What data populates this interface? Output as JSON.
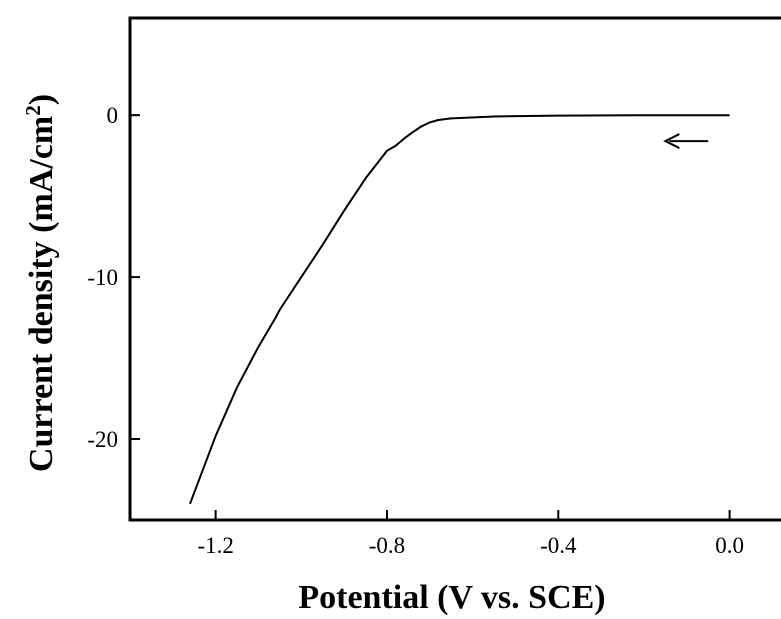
{
  "chart_data": {
    "type": "line",
    "title": "",
    "xlabel": "Potential (V vs. SCE)",
    "ylabel_main": "Current density (mA/cm",
    "ylabel_sup": "2",
    "ylabel_close": ")",
    "xlim": [
      -1.4,
      0.12
    ],
    "ylim": [
      -25,
      6
    ],
    "xticks": [
      -1.2,
      -0.8,
      -0.4,
      0.0
    ],
    "xtick_labels": [
      "-1.2",
      "-0.8",
      "-0.4",
      "0.0"
    ],
    "yticks": [
      0,
      -10,
      -20
    ],
    "ytick_labels": [
      "0",
      "-10",
      "-20"
    ],
    "grid": false,
    "legend": "none",
    "series": [
      {
        "color": "#000000",
        "x": [
          0.0,
          -0.2,
          -0.4,
          -0.55,
          -0.65,
          -0.68,
          -0.7,
          -0.72,
          -0.74,
          -0.76,
          -0.78,
          -0.8,
          -0.85,
          -0.9,
          -0.95,
          -1.0,
          -1.05,
          -1.06,
          -1.1,
          -1.15,
          -1.2,
          -1.26
        ],
        "y": [
          0.0,
          0.0,
          -0.03,
          -0.08,
          -0.2,
          -0.3,
          -0.45,
          -0.7,
          -1.05,
          -1.45,
          -1.9,
          -2.2,
          -3.9,
          -5.9,
          -8.0,
          -10.0,
          -12.0,
          -12.5,
          -14.3,
          -16.8,
          -19.8,
          -24.0
        ]
      }
    ],
    "annotations": [
      {
        "type": "arrow",
        "direction": "left",
        "x_from": -0.05,
        "x_to": -0.15,
        "y": -1.6
      }
    ]
  }
}
